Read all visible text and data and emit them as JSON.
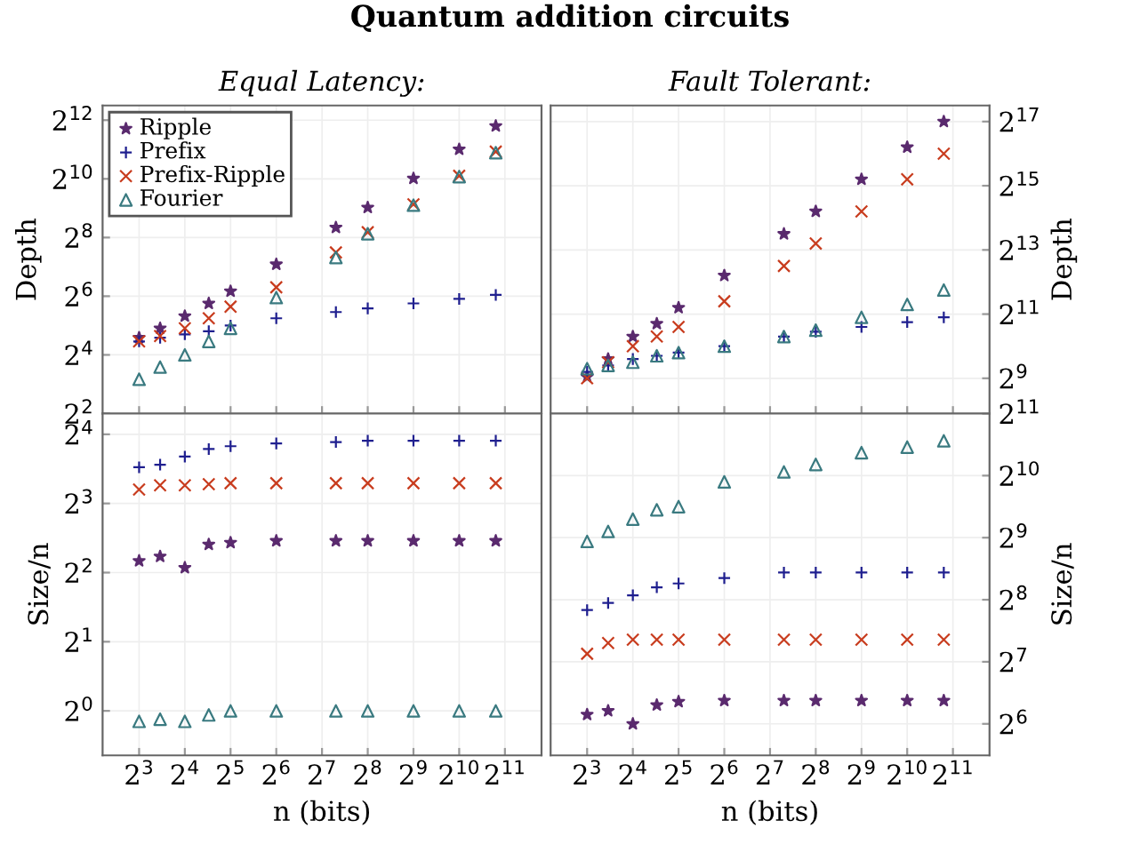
{
  "chart_data": [
    {
      "type": "scatter",
      "title": "Quantum addition circuits",
      "subtitle": "Equal Latency:",
      "ylabel": "Depth",
      "log": "xy",
      "grid": true,
      "legend": "top left",
      "tick_labels": "y",
      "x": [
        8,
        11,
        16,
        23,
        32,
        64,
        158,
        256,
        512,
        1024,
        1783
      ],
      "xlim": [
        4.6,
        3566
      ],
      "ylim": [
        4,
        5793
      ],
      "xticks": [
        {
          "value": 8,
          "label": null
        },
        {
          "value": 16,
          "label": null
        },
        {
          "value": 32,
          "label": null
        },
        {
          "value": 64,
          "label": null
        },
        {
          "value": 128,
          "label": null
        },
        {
          "value": 256,
          "label": null
        },
        {
          "value": 512,
          "label": null
        },
        {
          "value": 1024,
          "label": null
        },
        {
          "value": 2048,
          "label": null
        }
      ],
      "yticks": [
        {
          "value": 4,
          "label": "2$^{2}$"
        },
        {
          "value": 16,
          "label": "2$^{4}$"
        },
        {
          "value": 64,
          "label": "2$^{6}$"
        },
        {
          "value": 256,
          "label": "2$^{8}$"
        },
        {
          "value": 1024,
          "label": "2$^{10}$"
        },
        {
          "value": 4096,
          "label": "2$^{12}$"
        }
      ],
      "series": [
        {
          "name": "Ripple",
          "color": "#5a2a6e",
          "marker": "star",
          "values": [
            24,
            30,
            40,
            54,
            72,
            136,
            324,
            520,
            1032,
            2056,
            3574
          ]
        },
        {
          "name": "Prefix",
          "color": "#1f1f8f",
          "marker": "plus",
          "values": [
            22,
            24,
            26,
            28,
            32,
            38,
            44,
            48,
            54,
            60,
            66
          ]
        },
        {
          "name": "Prefix-Ripple",
          "color": "#c83c1e",
          "marker": "cross",
          "values": [
            22,
            25,
            30,
            38,
            50,
            79,
            180,
            290,
            560,
            1100,
            1950
          ]
        },
        {
          "name": "Fourier",
          "color": "#3a7a80",
          "marker": "triangle",
          "values": [
            9,
            12,
            16,
            22,
            30,
            62,
            160,
            280,
            550,
            1080,
            1900
          ]
        }
      ]
    },
    {
      "type": "scatter",
      "subtitle": "Fault Tolerant:",
      "ylabel": "Depth",
      "log": "xy",
      "grid": true,
      "tick_labels": "y",
      "x": [
        8,
        11,
        16,
        23,
        32,
        64,
        158,
        256,
        512,
        1024,
        1783
      ],
      "xlim": [
        4.6,
        3566
      ],
      "ylim": [
        239,
        185364
      ],
      "xticks": [
        {
          "value": 8,
          "label": null
        },
        {
          "value": 16,
          "label": null
        },
        {
          "value": 32,
          "label": null
        },
        {
          "value": 64,
          "label": null
        },
        {
          "value": 128,
          "label": null
        },
        {
          "value": 256,
          "label": null
        },
        {
          "value": 512,
          "label": null
        },
        {
          "value": 1024,
          "label": null
        },
        {
          "value": 2048,
          "label": null
        }
      ],
      "yticks": [
        {
          "value": 512,
          "label": "2$^{9}$"
        },
        {
          "value": 2048,
          "label": "2$^{11}$"
        },
        {
          "value": 8192,
          "label": "2$^{13}$"
        },
        {
          "value": 32768,
          "label": "2$^{15}$"
        },
        {
          "value": 131072,
          "label": "2$^{17}$"
        }
      ],
      "series": [
        {
          "color": "#5a2a6e",
          "marker": "star",
          "values": [
            530,
            776,
            1261,
            1663,
            2353,
            4705,
            11585,
            18820,
            37640,
            75281,
            131072
          ]
        },
        {
          "color": "#1f1f8f",
          "marker": "plus",
          "values": [
            588,
            676,
            776,
            832,
            891,
            1024,
            1261,
            1399,
            1552,
            1722,
            1911
          ]
        },
        {
          "color": "#c83c1e",
          "marker": "cross",
          "values": [
            512,
            724,
            1024,
            1261,
            1552,
            2702,
            5793,
            9410,
            18820,
            37641,
            65536
          ]
        },
        {
          "color": "#3a7a80",
          "marker": "triangle",
          "values": [
            630,
            676,
            724,
            832,
            891,
            1024,
            1261,
            1448,
            1911,
            2521,
            3444
          ]
        }
      ]
    },
    {
      "type": "scatter",
      "xlabel": "n (bits)",
      "ylabel": "Size/n",
      "log": "xy",
      "grid": true,
      "x": [
        8,
        11,
        16,
        23,
        32,
        64,
        158,
        256,
        512,
        1024,
        1783
      ],
      "xlim": [
        4.6,
        3566
      ],
      "ylim": [
        0.64,
        19.7
      ],
      "xticks": [
        {
          "value": 8,
          "label": "2$^{3}$"
        },
        {
          "value": 16,
          "label": "2$^{4}$"
        },
        {
          "value": 32,
          "label": "2$^{5}$"
        },
        {
          "value": 64,
          "label": "2$^{6}$"
        },
        {
          "value": 128,
          "label": "2$^{7}$"
        },
        {
          "value": 256,
          "label": "2$^{8}$"
        },
        {
          "value": 512,
          "label": "2$^{9}$"
        },
        {
          "value": 1024,
          "label": "2$^{10}$"
        },
        {
          "value": 2048,
          "label": "2$^{11}$"
        }
      ],
      "yticks": [
        {
          "value": 1,
          "label": "2$^{0}$"
        },
        {
          "value": 2,
          "label": "2$^{1}$"
        },
        {
          "value": 4,
          "label": "2$^{2}$"
        },
        {
          "value": 8,
          "label": "2$^{3}$"
        },
        {
          "value": 16,
          "label": "2$^{4}$"
        }
      ],
      "series": [
        {
          "color": "#5a2a6e",
          "marker": "star",
          "values": [
            4.5,
            4.7,
            4.2,
            5.3,
            5.4,
            5.5,
            5.5,
            5.5,
            5.5,
            5.5,
            5.5
          ]
        },
        {
          "color": "#1f1f8f",
          "marker": "plus",
          "values": [
            11.5,
            11.8,
            12.8,
            13.8,
            14.2,
            14.6,
            14.8,
            15,
            15,
            15,
            15
          ]
        },
        {
          "color": "#c83c1e",
          "marker": "cross",
          "values": [
            9.2,
            9.6,
            9.6,
            9.7,
            9.8,
            9.8,
            9.8,
            9.8,
            9.8,
            9.8,
            9.8
          ]
        },
        {
          "color": "#3a7a80",
          "marker": "triangle",
          "values": [
            0.9,
            0.92,
            0.9,
            0.96,
            1.0,
            1.0,
            1.0,
            1.0,
            1.0,
            1.0,
            1.0
          ]
        }
      ]
    },
    {
      "type": "scatter",
      "xlabel": "n (bits)",
      "ylabel": "Size/n",
      "log": "xy",
      "grid": true,
      "x": [
        8,
        11,
        16,
        23,
        32,
        64,
        158,
        256,
        512,
        1024,
        1783
      ],
      "xlim": [
        4.6,
        3566
      ],
      "ylim": [
        45,
        2048
      ],
      "xticks": [
        {
          "value": 8,
          "label": "2$^{3}$"
        },
        {
          "value": 16,
          "label": "2$^{4}$"
        },
        {
          "value": 32,
          "label": "2$^{5}$"
        },
        {
          "value": 64,
          "label": "2$^{6}$"
        },
        {
          "value": 128,
          "label": "2$^{7}$"
        },
        {
          "value": 256,
          "label": "2$^{8}$"
        },
        {
          "value": 512,
          "label": "2$^{9}$"
        },
        {
          "value": 1024,
          "label": "2$^{10}$"
        },
        {
          "value": 2048,
          "label": "2$^{11}$"
        }
      ],
      "yticks": [
        {
          "value": 64,
          "label": "2$^{6}$"
        },
        {
          "value": 128,
          "label": "2$^{7}$"
        },
        {
          "value": 256,
          "label": "2$^{8}$"
        },
        {
          "value": 512,
          "label": "2$^{9}$"
        },
        {
          "value": 1024,
          "label": "2$^{10}$"
        },
        {
          "value": 2048,
          "label": "2$^{11}$"
        }
      ],
      "series": [
        {
          "color": "#5a2a6e",
          "marker": "star",
          "values": [
            71,
            74,
            64,
            79,
            82,
            83,
            83,
            83,
            83,
            83,
            83
          ]
        },
        {
          "color": "#1f1f8f",
          "marker": "plus",
          "values": [
            228,
            247,
            269,
            294,
            307,
            326,
            347,
            347,
            347,
            347,
            347
          ]
        },
        {
          "color": "#c83c1e",
          "marker": "cross",
          "values": [
            140,
            158,
            164,
            164,
            164,
            164,
            164,
            164,
            164,
            164,
            164
          ]
        },
        {
          "color": "#3a7a80",
          "marker": "triangle",
          "values": [
            491,
            549,
            630,
            699,
            724,
            955,
            1067,
            1160,
            1323,
            1408,
            1510
          ]
        }
      ]
    }
  ]
}
